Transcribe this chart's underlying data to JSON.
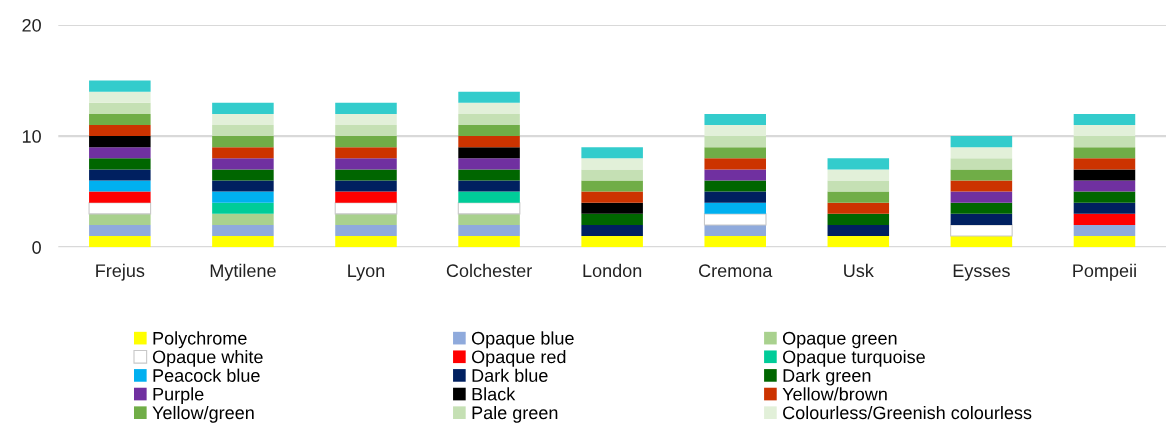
{
  "chart_data": {
    "type": "bar",
    "stacked": true,
    "categories": [
      "Frejus",
      "Mytilene",
      "Lyon",
      "Colchester",
      "London",
      "Cremona",
      "Usk",
      "Eysses",
      "Pompeii"
    ],
    "series": [
      {
        "name": "Polychrome",
        "color": "#ffff00",
        "values": [
          1,
          1,
          1,
          1,
          1,
          1,
          1,
          1,
          1
        ]
      },
      {
        "name": "Opaque blue",
        "color": "#8faadc",
        "values": [
          1,
          1,
          1,
          1,
          0,
          1,
          0,
          0,
          1
        ]
      },
      {
        "name": "Opaque green",
        "color": "#a9d18e",
        "values": [
          1,
          1,
          1,
          1,
          0,
          0,
          0,
          0,
          0
        ]
      },
      {
        "name": "Opaque white",
        "color": "#ffffff",
        "values": [
          1,
          0,
          1,
          1,
          0,
          1,
          0,
          1,
          0
        ]
      },
      {
        "name": "Opaque red",
        "color": "#ff0000",
        "values": [
          1,
          0,
          1,
          0,
          0,
          0,
          0,
          0,
          1
        ]
      },
      {
        "name": "Opaque turquoise",
        "color": "#00cc99",
        "values": [
          0,
          1,
          0,
          1,
          0,
          0,
          0,
          0,
          0
        ]
      },
      {
        "name": "Peacock blue",
        "color": "#00b0f0",
        "values": [
          1,
          1,
          0,
          0,
          0,
          1,
          0,
          0,
          0
        ]
      },
      {
        "name": "Dark blue",
        "color": "#002060",
        "values": [
          1,
          1,
          1,
          1,
          1,
          1,
          1,
          1,
          1
        ]
      },
      {
        "name": "Dark green",
        "color": "#006600",
        "values": [
          1,
          1,
          1,
          1,
          1,
          1,
          1,
          1,
          1
        ]
      },
      {
        "name": "Purple",
        "color": "#7030a0",
        "values": [
          1,
          1,
          1,
          1,
          0,
          1,
          0,
          1,
          1
        ]
      },
      {
        "name": "Black",
        "color": "#000000",
        "values": [
          1,
          0,
          0,
          1,
          1,
          0,
          0,
          0,
          1
        ]
      },
      {
        "name": "Yellow/brown",
        "color": "#cc3300",
        "values": [
          1,
          1,
          1,
          1,
          1,
          1,
          1,
          1,
          1
        ]
      },
      {
        "name": "Yellow/green",
        "color": "#70ad47",
        "values": [
          1,
          1,
          1,
          1,
          1,
          1,
          1,
          1,
          1
        ]
      },
      {
        "name": "Pale green",
        "color": "#c5e0b4",
        "values": [
          1,
          1,
          1,
          1,
          1,
          1,
          1,
          1,
          1
        ]
      },
      {
        "name": "Colourless/Greenish colourless",
        "color": "#e2f0d9",
        "values": [
          1,
          1,
          1,
          1,
          1,
          1,
          1,
          1,
          1
        ]
      },
      {
        "color": "#33cccc",
        "values": [
          1,
          1,
          1,
          1,
          1,
          1,
          1,
          1,
          1
        ]
      }
    ],
    "ylim": [
      0,
      20
    ],
    "yticks": [
      0,
      10,
      20
    ],
    "grid": "y",
    "legend": "bottom"
  }
}
